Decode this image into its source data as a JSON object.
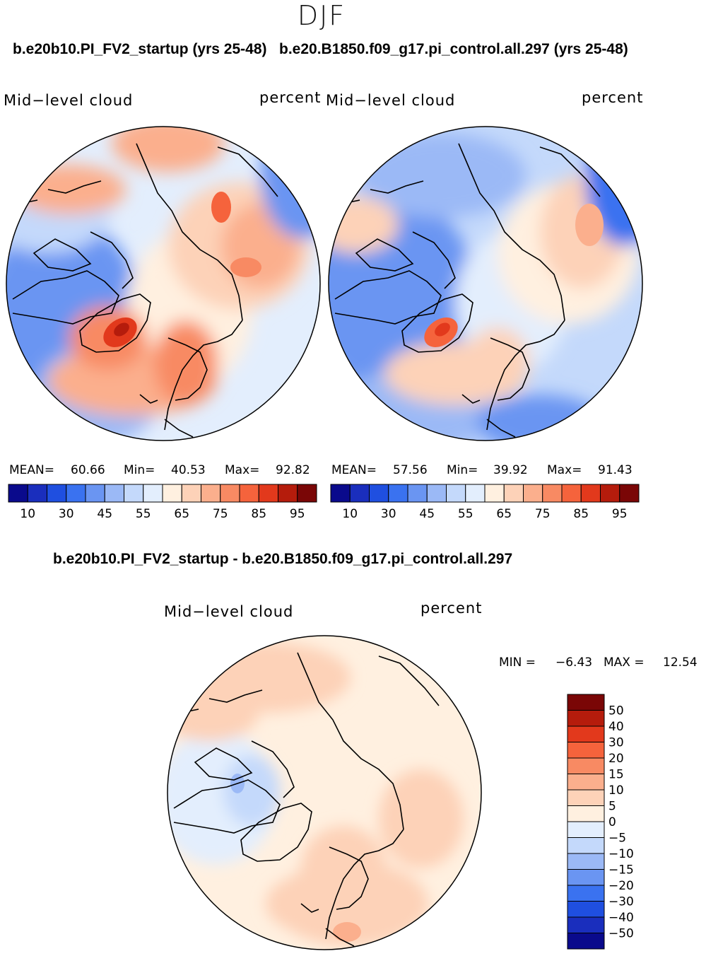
{
  "season": "DJF",
  "chart_data": [
    {
      "type": "heatmap",
      "projection": "north-polar-stereographic",
      "case_title": "b.e20b10.PI_FV2_startup (yrs 25-48)",
      "left_label": "Mid−level cloud",
      "right_label": "percent",
      "stats": {
        "mean_label": "MEAN=",
        "mean": "60.66",
        "min_label": "Min=",
        "min": "40.53",
        "max_label": "Max=",
        "max": "92.82"
      },
      "colorbar": {
        "levels": [
          10,
          20,
          30,
          40,
          45,
          50,
          55,
          60,
          65,
          70,
          75,
          80,
          85,
          90,
          95
        ],
        "tick_labels": [
          "10",
          "30",
          "45",
          "55",
          "65",
          "75",
          "85",
          "95"
        ],
        "colors": [
          "#0a0a8c",
          "#1a2ebd",
          "#1f4fe0",
          "#3a72f0",
          "#6a95f2",
          "#9bb9f6",
          "#c4d9fb",
          "#e3eefd",
          "#fff0e0",
          "#fdd2b8",
          "#fbaf8d",
          "#f88a63",
          "#f5633c",
          "#e2391c",
          "#b51c0c",
          "#7a0606"
        ]
      }
    },
    {
      "type": "heatmap",
      "projection": "north-polar-stereographic",
      "case_title": "b.e20.B1850.f09_g17.pi_control.all.297 (yrs 25-48)",
      "left_label": "Mid−level cloud",
      "right_label": "percent",
      "stats": {
        "mean_label": "MEAN=",
        "mean": "57.56",
        "min_label": "Min=",
        "min": "39.92",
        "max_label": "Max=",
        "max": "91.43"
      },
      "colorbar": {
        "levels": [
          10,
          20,
          30,
          40,
          45,
          50,
          55,
          60,
          65,
          70,
          75,
          80,
          85,
          90,
          95
        ],
        "tick_labels": [
          "10",
          "30",
          "45",
          "55",
          "65",
          "75",
          "85",
          "95"
        ],
        "colors": [
          "#0a0a8c",
          "#1a2ebd",
          "#1f4fe0",
          "#3a72f0",
          "#6a95f2",
          "#9bb9f6",
          "#c4d9fb",
          "#e3eefd",
          "#fff0e0",
          "#fdd2b8",
          "#fbaf8d",
          "#f88a63",
          "#f5633c",
          "#e2391c",
          "#b51c0c",
          "#7a0606"
        ]
      }
    },
    {
      "type": "heatmap",
      "projection": "north-polar-stereographic",
      "case_title": "b.e20b10.PI_FV2_startup - b.e20.B1850.f09_g17.pi_control.all.297",
      "left_label": "Mid−level cloud",
      "right_label": "percent",
      "stats": {
        "min_label": "MIN =",
        "min": "−6.43",
        "max_label": "MAX =",
        "max": "12.54"
      },
      "colorbar": {
        "levels": [
          -50,
          -40,
          -30,
          -20,
          -15,
          -10,
          -5,
          0,
          5,
          10,
          15,
          20,
          30,
          40,
          50
        ],
        "tick_labels": [
          "50",
          "40",
          "30",
          "20",
          "15",
          "10",
          "5",
          "0",
          "−5",
          "−10",
          "−15",
          "−20",
          "−30",
          "−40",
          "−50"
        ],
        "colors": [
          "#7a0606",
          "#b51c0c",
          "#e2391c",
          "#f5633c",
          "#f88a63",
          "#fbaf8d",
          "#fdd2b8",
          "#fff0e0",
          "#e3eefd",
          "#c4d9fb",
          "#9bb9f6",
          "#6a95f2",
          "#3a72f0",
          "#1f4fe0",
          "#1a2ebd",
          "#0a0a8c"
        ]
      }
    }
  ]
}
